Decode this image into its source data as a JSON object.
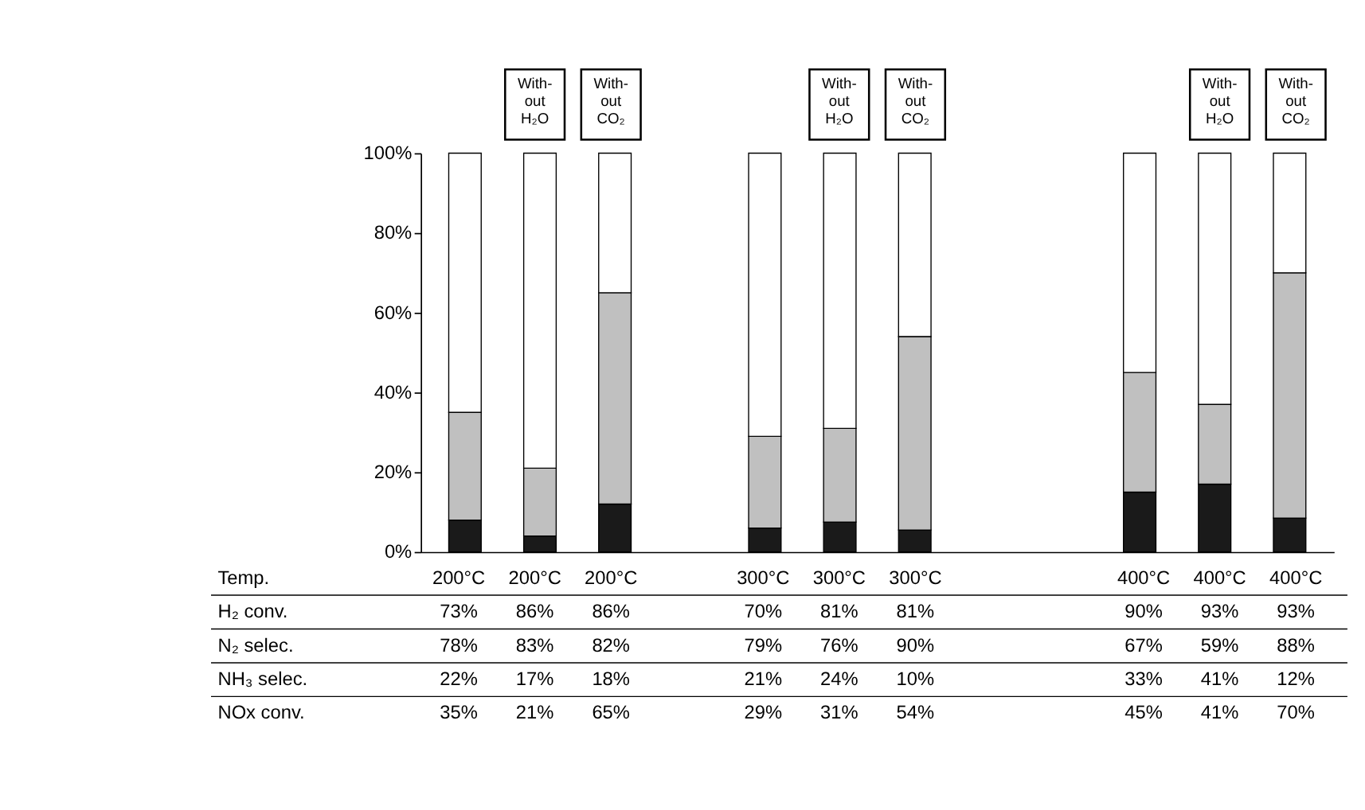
{
  "chart_data": {
    "type": "bar",
    "stacked": true,
    "categories": [
      "200°C",
      "200°C",
      "200°C",
      null,
      "300°C",
      "300°C",
      "300°C",
      null,
      null,
      "400°C",
      "400°C",
      "400°C"
    ],
    "series": [
      {
        "color": "#1a1a1a",
        "values": [
          8,
          4,
          12,
          null,
          6,
          7.5,
          5.5,
          null,
          null,
          15,
          17,
          8.5
        ]
      },
      {
        "color": "#c0c0c0",
        "values": [
          27,
          17,
          53,
          null,
          23,
          23.5,
          48.5,
          null,
          null,
          30,
          20,
          61.5
        ]
      },
      {
        "color": "#ffffff",
        "values": [
          65,
          79,
          35,
          null,
          71,
          69,
          46,
          null,
          null,
          55,
          63,
          30
        ]
      }
    ],
    "ylim": [
      0,
      100
    ],
    "yticks": [
      {
        "value": 0,
        "label": "0%"
      },
      {
        "value": 20,
        "label": "20%"
      },
      {
        "value": 40,
        "label": "40%"
      },
      {
        "value": 60,
        "label": "60%"
      },
      {
        "value": 80,
        "label": "80%"
      },
      {
        "value": 100,
        "label": "100%"
      }
    ],
    "grid": false,
    "legend": false,
    "annotations": [
      "With-\nout\nH₂O",
      "With-\nout\nCO₂",
      "With-\nout\nH₂O",
      "With-\nout\nCO₂",
      "With-\nout\nH₂O",
      "With-\nout\nCO₂",
      "Temp.",
      "H₂ conv.",
      "73%",
      "86%",
      "86%",
      "70%",
      "81%",
      "81%",
      "90%",
      "93%",
      "93%",
      "N₂ selec.",
      "78%",
      "83%",
      "82%",
      "79%",
      "76%",
      "90%",
      "67%",
      "59%",
      "88%",
      "NH₃ selec.",
      "22%",
      "17%",
      "18%",
      "21%",
      "24%",
      "10%",
      "33%",
      "41%",
      "12%",
      "NOx conv.",
      "35%",
      "21%",
      "65%",
      "29%",
      "31%",
      "54%",
      "45%",
      "41%",
      "70%"
    ]
  }
}
